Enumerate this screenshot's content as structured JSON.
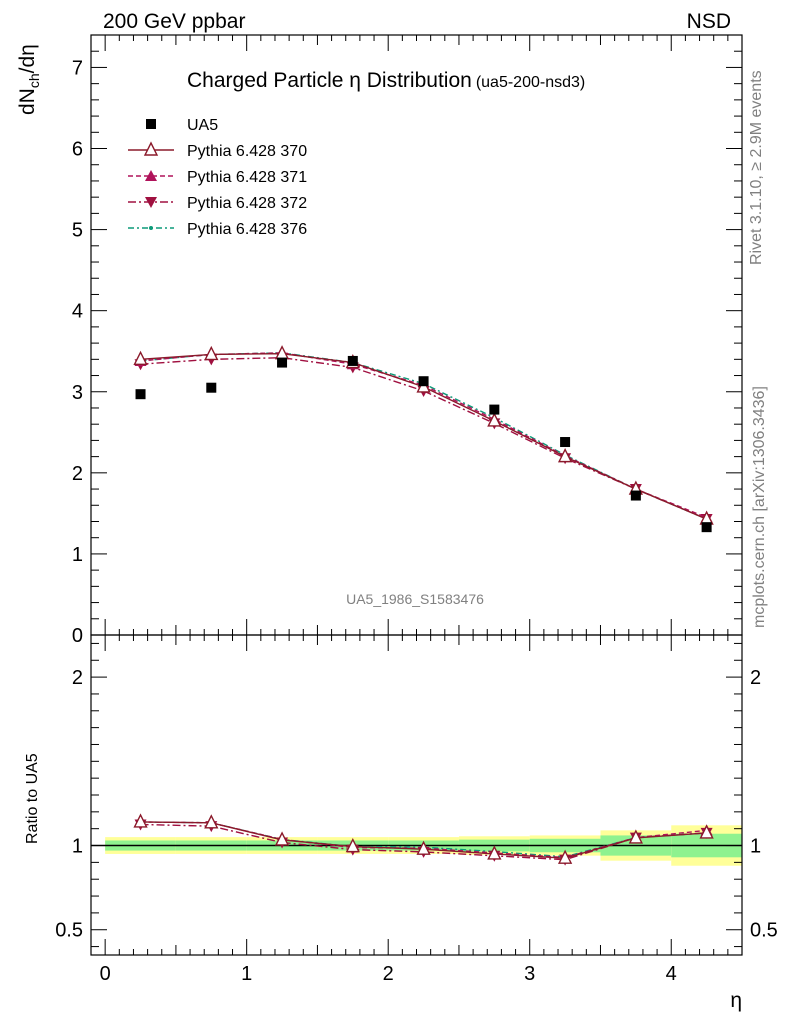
{
  "header": {
    "left": "200 GeV ppbar",
    "right": "NSD"
  },
  "side_text": {
    "rivet": "Rivet 3.1.10, ≥ 2.9M events",
    "mcplots": "mcplots.cern.ch [arXiv:1306.3436]"
  },
  "colors": {
    "data": "#000000",
    "p370": "#8b1a2b",
    "p371": "#b0125a",
    "p372": "#a01040",
    "p376": "#0c9a78",
    "band_yellow": "#ffff99",
    "band_green": "#8ff28f"
  },
  "chart_data": [
    {
      "type": "scatter",
      "title": "Charged Particle η Distribution",
      "title_suffix": "(ua5-200-nsd3)",
      "ylabel_main": "dN",
      "ylabel_sub": "ch",
      "ylabel_tail": "/dη",
      "watermark": "UA5_1986_S1583476",
      "xlim": [
        -0.1,
        4.5
      ],
      "ylim": [
        0,
        7.4
      ],
      "yticks": [
        0,
        1,
        2,
        3,
        4,
        5,
        6,
        7
      ],
      "x": [
        0.25,
        0.75,
        1.25,
        1.75,
        2.25,
        2.75,
        3.25,
        3.75,
        4.25
      ],
      "series": [
        {
          "name": "UA5",
          "key": "data",
          "values": [
            2.97,
            3.05,
            3.36,
            3.38,
            3.13,
            2.78,
            2.38,
            1.72,
            1.33
          ]
        },
        {
          "name": "Pythia 6.428 370",
          "key": "p370",
          "values": [
            3.4,
            3.46,
            3.47,
            3.36,
            3.06,
            2.64,
            2.2,
            1.8,
            1.43
          ]
        },
        {
          "name": "Pythia 6.428 371",
          "key": "p371",
          "values": [
            3.38,
            3.46,
            3.48,
            3.34,
            3.08,
            2.66,
            2.21,
            1.8,
            1.45
          ]
        },
        {
          "name": "Pythia 6.428 372",
          "key": "p372",
          "values": [
            3.34,
            3.4,
            3.42,
            3.3,
            3.01,
            2.61,
            2.18,
            1.8,
            1.43
          ]
        },
        {
          "name": "Pythia 6.428 376",
          "key": "p376",
          "values": [
            3.38,
            3.46,
            3.48,
            3.36,
            3.1,
            2.68,
            2.22,
            1.8,
            1.43
          ]
        }
      ]
    },
    {
      "type": "line",
      "ylabel": "Ratio to UA5",
      "xlabel": "η",
      "xlim": [
        -0.1,
        4.5
      ],
      "ylim": [
        0.35,
        2.25
      ],
      "yticks": [
        0.5,
        1,
        2
      ],
      "xticks": [
        0,
        1,
        2,
        3,
        4
      ],
      "x": [
        0.25,
        0.75,
        1.25,
        1.75,
        2.25,
        2.75,
        3.25,
        3.75,
        4.25
      ],
      "bin_edges": [
        0.0,
        0.5,
        1.0,
        1.5,
        2.0,
        2.5,
        3.0,
        3.5,
        4.0,
        4.5
      ],
      "band_stat": [
        0.03,
        0.03,
        0.03,
        0.03,
        0.03,
        0.035,
        0.04,
        0.06,
        0.07
      ],
      "band_syst": [
        0.05,
        0.05,
        0.05,
        0.05,
        0.05,
        0.055,
        0.06,
        0.09,
        0.12
      ],
      "series": [
        {
          "name": "Pythia 6.428 370",
          "key": "p370",
          "values": [
            1.14,
            1.135,
            1.033,
            0.994,
            0.978,
            0.95,
            0.925,
            1.045,
            1.075
          ]
        },
        {
          "name": "Pythia 6.428 371",
          "key": "p371",
          "values": [
            1.14,
            1.135,
            1.036,
            0.988,
            0.984,
            0.956,
            0.929,
            1.047,
            1.09
          ]
        },
        {
          "name": "Pythia 6.428 372",
          "key": "p372",
          "values": [
            1.125,
            1.115,
            1.018,
            0.976,
            0.962,
            0.939,
            0.916,
            1.047,
            1.075
          ]
        },
        {
          "name": "Pythia 6.428 376",
          "key": "p376",
          "values": [
            1.14,
            1.135,
            1.036,
            0.994,
            0.99,
            0.964,
            0.933,
            1.047,
            1.075
          ]
        }
      ]
    }
  ]
}
